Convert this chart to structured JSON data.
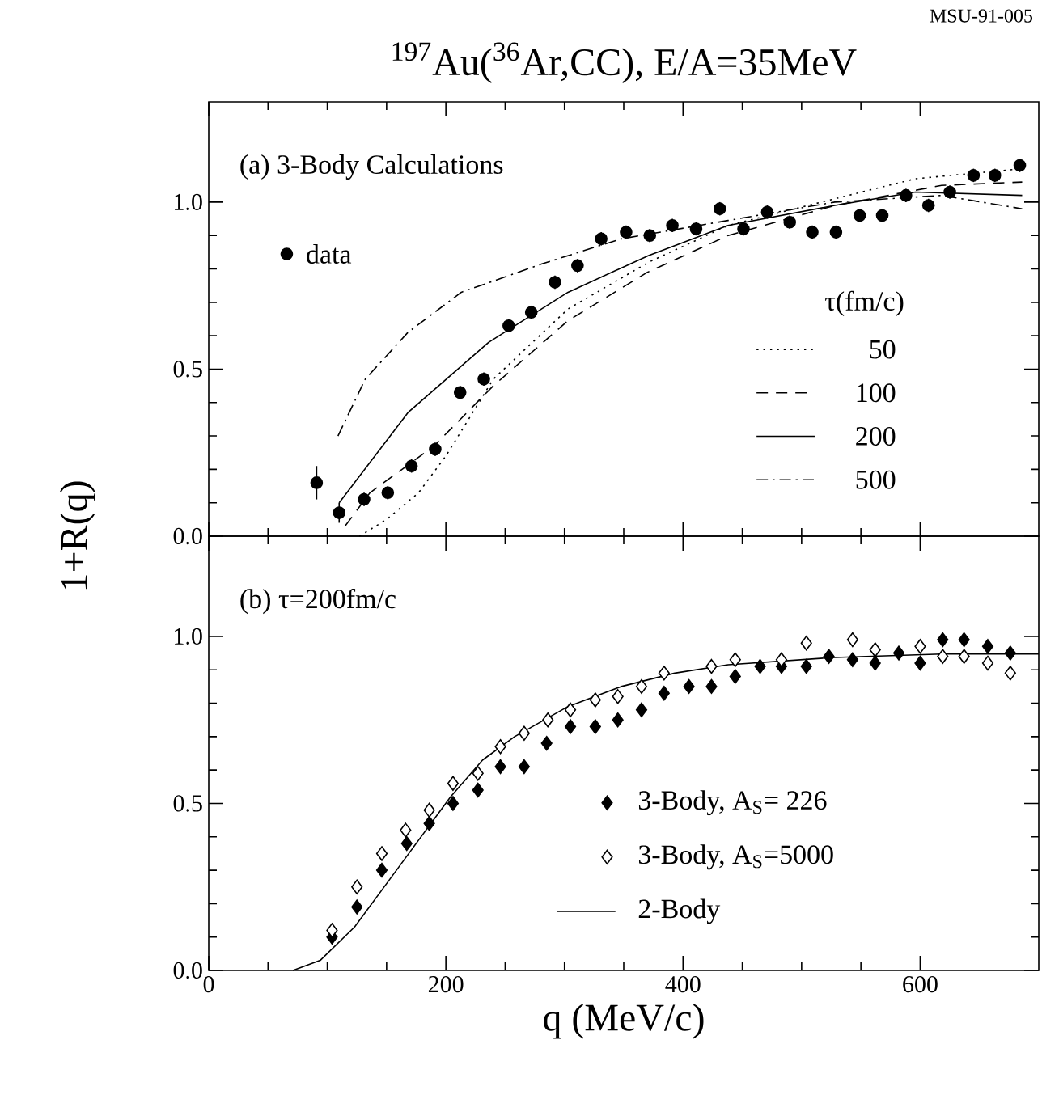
{
  "chart_data": [
    {
      "type": "scatter",
      "title": "$^{197}$Au($^{36}$Ar,CC), E/A=35MeV",
      "legend_title": "τ(fm/c)",
      "legend": "right",
      "tick_labels": "y",
      "annotations": [
        "(a) 3-Body Calculations",
        "MSU-91-005"
      ],
      "xlim": [
        0,
        700
      ],
      "xticks": [
        0,
        200,
        400,
        600
      ],
      "ylim": [
        0,
        1.3
      ],
      "yticks": [
        {
          "value": 0,
          "label": "0.0"
        },
        {
          "value": 0.5,
          "label": "0.5"
        },
        {
          "value": 1,
          "label": "1.0"
        }
      ],
      "series": [
        {
          "name": "data",
          "marker": "circle",
          "color": "#000000",
          "x": [
            91,
            110,
            131,
            151,
            171,
            191,
            212,
            232,
            253,
            272,
            292,
            311,
            331,
            352,
            372,
            391,
            411,
            431,
            451,
            471,
            490,
            509,
            529,
            549,
            568,
            588,
            607,
            625,
            645,
            663,
            684
          ],
          "values": [
            0.16,
            0.07,
            0.11,
            0.13,
            0.21,
            0.26,
            0.43,
            0.47,
            0.63,
            0.67,
            0.76,
            0.81,
            0.89,
            0.91,
            0.9,
            0.93,
            0.92,
            0.98,
            0.92,
            0.97,
            0.94,
            0.91,
            0.91,
            0.96,
            0.96,
            1.02,
            0.99,
            1.03,
            1.08,
            1.08,
            1.11
          ],
          "errors": [
            0.05,
            0.03,
            0.02,
            0.02,
            0.02,
            0.02,
            0.02,
            0.02,
            0.02,
            0.02,
            0.02,
            0.02,
            0.02,
            0.02,
            0.02,
            0.02,
            0.02,
            0.02,
            0.02,
            0.02,
            0.02,
            0.02,
            0.02,
            0.02,
            0.02,
            0.02,
            0.02,
            0.02,
            0.02,
            0.02,
            0.02
          ]
        },
        {
          "name": "50",
          "type": "line",
          "line_style": "dotted",
          "color": "#000000",
          "x": [
            127,
            150,
            177,
            200,
            240,
            303,
            371,
            438,
            528,
            596,
            686
          ],
          "values": [
            0.0,
            0.05,
            0.13,
            0.24,
            0.47,
            0.68,
            0.82,
            0.93,
            1.01,
            1.07,
            1.1
          ]
        },
        {
          "name": "100",
          "type": "line",
          "line_style": "dashed",
          "color": "#000000",
          "x": [
            115,
            136,
            190,
            240,
            303,
            370,
            438,
            528,
            618,
            686
          ],
          "values": [
            0.03,
            0.13,
            0.27,
            0.45,
            0.645,
            0.79,
            0.9,
            0.99,
            1.05,
            1.06
          ]
        },
        {
          "name": "200",
          "type": "line",
          "line_style": "solid",
          "color": "#000000",
          "x": [
            110,
            168,
            236,
            303,
            371,
            438,
            528,
            596,
            686
          ],
          "values": [
            0.1,
            0.37,
            0.58,
            0.73,
            0.84,
            0.93,
            0.99,
            1.03,
            1.02
          ]
        },
        {
          "name": "500",
          "type": "line",
          "line_style": "dashdot",
          "color": "#000000",
          "x": [
            109,
            132,
            168,
            213,
            281,
            348,
            438,
            528,
            618,
            686
          ],
          "values": [
            0.3,
            0.47,
            0.61,
            0.73,
            0.815,
            0.89,
            0.945,
            1.0,
            1.02,
            0.98
          ]
        }
      ]
    },
    {
      "type": "scatter",
      "xlabel": "q (MeV/c)",
      "ylabel": "1+R(q)",
      "legend": "bottom right",
      "annotations": [
        "(b) τ=200fm/c"
      ],
      "xlim": [
        0,
        700
      ],
      "xticks": [
        0,
        200,
        400,
        600
      ],
      "ylim": [
        0,
        1.3
      ],
      "yticks": [
        {
          "value": 0,
          "label": "0.0"
        },
        {
          "value": 0.5,
          "label": "0.5"
        },
        {
          "value": 1,
          "label": "1.0"
        }
      ],
      "series": [
        {
          "name": "3-Body, A$_{S}$= 226",
          "marker": "diamond",
          "color": "#000000",
          "x": [
            104,
            125,
            146,
            167,
            186,
            206,
            227,
            246,
            266,
            285,
            305,
            326,
            345,
            365,
            384,
            405,
            424,
            444,
            465,
            483,
            504,
            523,
            543,
            562,
            582,
            600,
            619,
            637,
            657,
            676
          ],
          "values": [
            0.1,
            0.19,
            0.3,
            0.38,
            0.44,
            0.5,
            0.54,
            0.61,
            0.61,
            0.68,
            0.73,
            0.73,
            0.75,
            0.78,
            0.83,
            0.85,
            0.85,
            0.88,
            0.91,
            0.91,
            0.91,
            0.94,
            0.93,
            0.92,
            0.95,
            0.92,
            0.99,
            0.99,
            0.97,
            0.95
          ]
        },
        {
          "name": "3-Body, A$_{S}$=5000",
          "marker": "diamond",
          "color": "#000000",
          "x": [
            104,
            125,
            146,
            166,
            186,
            206,
            227,
            246,
            266,
            286,
            305,
            326,
            345,
            365,
            384,
            424,
            444,
            483,
            504,
            543,
            562,
            600,
            619,
            637,
            657,
            676
          ],
          "values": [
            0.12,
            0.25,
            0.35,
            0.42,
            0.48,
            0.56,
            0.59,
            0.67,
            0.71,
            0.75,
            0.78,
            0.81,
            0.82,
            0.85,
            0.89,
            0.91,
            0.93,
            0.93,
            0.98,
            0.99,
            0.96,
            0.97,
            0.94,
            0.94,
            0.92,
            0.89
          ]
        },
        {
          "name": "2-Body",
          "type": "line",
          "line_style": "solid",
          "color": "#000000",
          "x": [
            71,
            94,
            123,
            150,
            177,
            204,
            231,
            258,
            303,
            348,
            393,
            438,
            528,
            618,
            700
          ],
          "values": [
            0.0,
            0.03,
            0.13,
            0.26,
            0.39,
            0.52,
            0.63,
            0.7,
            0.79,
            0.85,
            0.89,
            0.915,
            0.937,
            0.947,
            0.947
          ]
        }
      ]
    }
  ]
}
